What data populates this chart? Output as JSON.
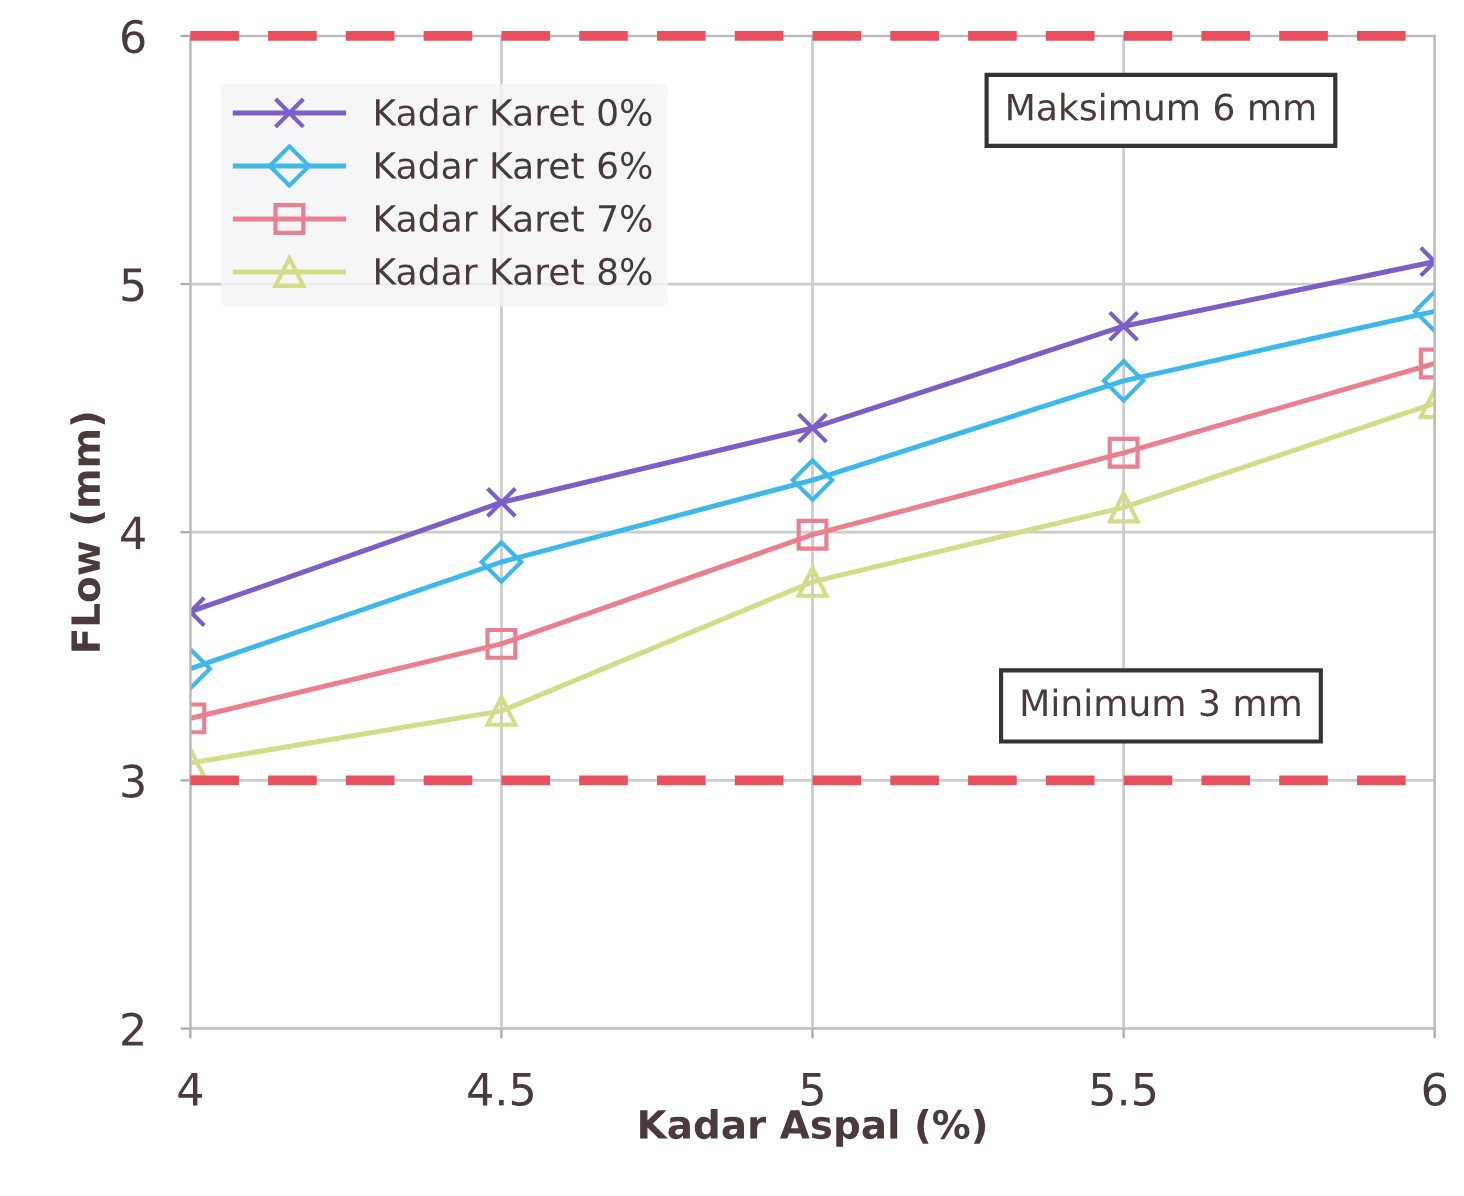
{
  "chart_data": {
    "type": "line",
    "xlabel": "Kadar Aspal (%)",
    "ylabel": "FLow (mm)",
    "x": [
      4,
      4.5,
      5,
      5.5,
      6
    ],
    "series": [
      {
        "name": "Kadar Karet 0%",
        "color": "#7b5fc4",
        "marker": "cross",
        "values": [
          3.68,
          4.12,
          4.42,
          4.83,
          5.09
        ]
      },
      {
        "name": "Kadar Karet 6%",
        "color": "#3db8e8",
        "marker": "diamond",
        "values": [
          3.45,
          3.88,
          4.21,
          4.61,
          4.89
        ]
      },
      {
        "name": "Kadar Karet 7%",
        "color": "#e8808f",
        "marker": "square",
        "values": [
          3.25,
          3.55,
          3.99,
          4.32,
          4.68
        ]
      },
      {
        "name": "Kadar Karet 8%",
        "color": "#d4dc8a",
        "marker": "triangle",
        "values": [
          3.07,
          3.28,
          3.8,
          4.1,
          4.52
        ]
      }
    ],
    "xlim": [
      4,
      6
    ],
    "ylim": [
      2,
      6
    ],
    "xticks": [
      4,
      4.5,
      5,
      5.5,
      6
    ],
    "yticks": [
      2,
      3,
      4,
      5,
      6
    ],
    "ref_lines": [
      {
        "axis": "y",
        "value": 6,
        "label": "Maksimum 6 mm",
        "color": "#e8505f",
        "line_style": "dashed"
      },
      {
        "axis": "y",
        "value": 3,
        "label": "Minimum 3 mm",
        "color": "#e8505f",
        "line_style": "dashed"
      }
    ],
    "grid": true,
    "legend": "top left"
  }
}
